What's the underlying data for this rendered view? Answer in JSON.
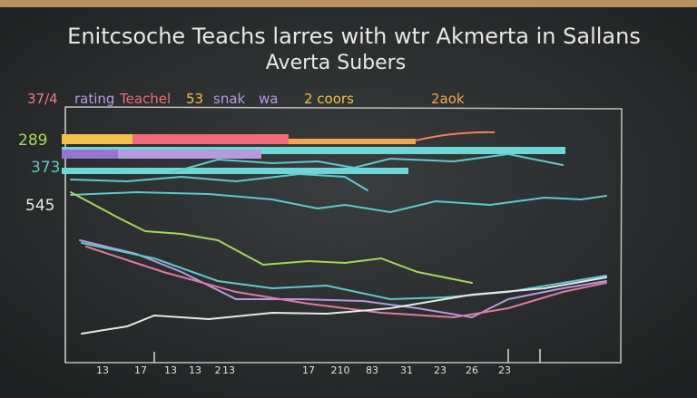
{
  "header": {
    "title": "Enitcsoche Teachs larres with wtr Akmerta in Sallans",
    "subtitle": "Averta Subers"
  },
  "legend": [
    "37/4",
    "rating",
    "Teachel",
    "53",
    "snak",
    "wa",
    "2 coors",
    "2aok"
  ],
  "y_labels": [
    "289",
    "373",
    "545"
  ],
  "x_labels": [
    "13",
    "17",
    "13",
    "13",
    "2",
    "13",
    "17",
    "210",
    "83",
    "31",
    "23",
    "26",
    "23"
  ]
}
